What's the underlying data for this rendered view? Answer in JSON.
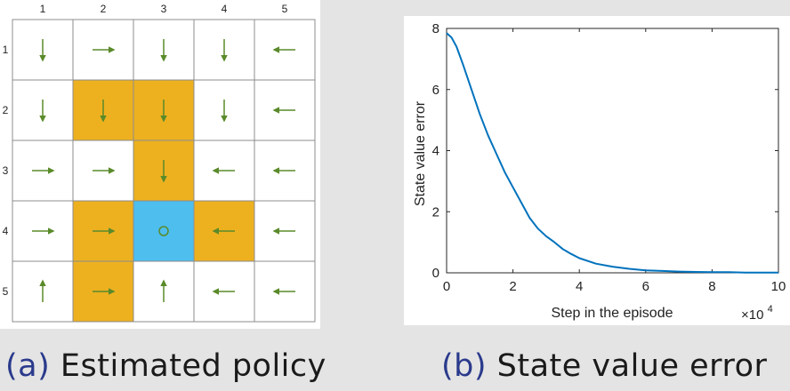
{
  "figure_a": {
    "caption_label": "(a)",
    "caption_text": " Estimated policy",
    "column_labels": [
      "1",
      "2",
      "3",
      "4",
      "5"
    ],
    "row_labels": [
      "1",
      "2",
      "3",
      "4",
      "5"
    ],
    "cell_colors": {
      "white": "#ffffff",
      "forbidden": "#edb120",
      "target": "#4dbeee"
    },
    "arrow_color": "#5a8a2a",
    "grid": [
      [
        "white",
        "white",
        "white",
        "white",
        "white"
      ],
      [
        "white",
        "forbidden",
        "forbidden",
        "white",
        "white"
      ],
      [
        "white",
        "white",
        "forbidden",
        "white",
        "white"
      ],
      [
        "white",
        "forbidden",
        "target",
        "forbidden",
        "white"
      ],
      [
        "white",
        "forbidden",
        "white",
        "white",
        "white"
      ]
    ],
    "policy": [
      [
        "down",
        "right",
        "down",
        "down",
        "left"
      ],
      [
        "down",
        "down",
        "down",
        "down",
        "left"
      ],
      [
        "right",
        "right",
        "down",
        "left",
        "left"
      ],
      [
        "right",
        "right",
        "stay",
        "left",
        "left"
      ],
      [
        "up",
        "right",
        "up",
        "left",
        "left"
      ]
    ]
  },
  "figure_b": {
    "caption_label": "(b)",
    "caption_text": " State value error",
    "chart_data": {
      "type": "line",
      "title": "",
      "xlabel": "Step in the episode",
      "ylabel": "State value error",
      "x_multiplier_label": "×10",
      "x_multiplier_exp": "4",
      "xlim": [
        0,
        10
      ],
      "ylim": [
        0,
        8
      ],
      "xticks": [
        "0",
        "2",
        "4",
        "6",
        "8",
        "10"
      ],
      "yticks": [
        "0",
        "2",
        "4",
        "6",
        "8"
      ],
      "line_color": "#0072bd",
      "series": [
        {
          "x": [
            0,
            0.15,
            0.3,
            0.5,
            0.75,
            1.0,
            1.25,
            1.5,
            1.75,
            2.0,
            2.25,
            2.5,
            2.75,
            3.0,
            3.25,
            3.5,
            3.75,
            4.0,
            4.5,
            5.0,
            5.5,
            6.0,
            6.5,
            7.0,
            7.5,
            8.0,
            8.5,
            9.0,
            9.5,
            10.0
          ],
          "y": [
            7.85,
            7.7,
            7.4,
            6.8,
            6.0,
            5.2,
            4.5,
            3.9,
            3.3,
            2.8,
            2.3,
            1.8,
            1.45,
            1.2,
            1.0,
            0.78,
            0.62,
            0.48,
            0.3,
            0.2,
            0.13,
            0.08,
            0.06,
            0.04,
            0.03,
            0.02,
            0.02,
            0.01,
            0.01,
            0.01
          ]
        }
      ]
    }
  }
}
